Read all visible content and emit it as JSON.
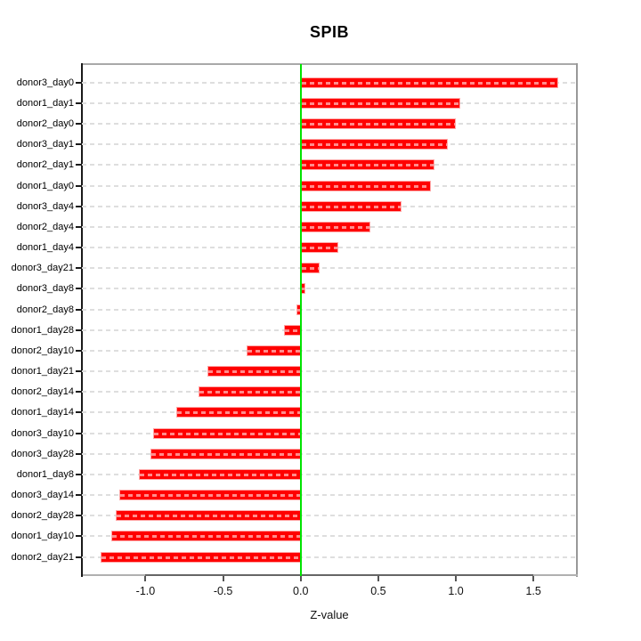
{
  "chart_data": {
    "type": "bar",
    "orientation": "horizontal",
    "title": "SPIB",
    "xlabel": "Z-value",
    "categories": [
      "donor3_day0",
      "donor1_day1",
      "donor2_day0",
      "donor3_day1",
      "donor2_day1",
      "donor1_day0",
      "donor3_day4",
      "donor2_day4",
      "donor1_day4",
      "donor3_day21",
      "donor3_day8",
      "donor2_day8",
      "donor1_day28",
      "donor2_day10",
      "donor1_day21",
      "donor2_day14",
      "donor1_day14",
      "donor3_day10",
      "donor3_day28",
      "donor1_day8",
      "donor3_day14",
      "donor2_day28",
      "donor1_day10",
      "donor2_day21"
    ],
    "values": [
      1.66,
      1.03,
      1.0,
      0.95,
      0.86,
      0.84,
      0.65,
      0.45,
      0.24,
      0.12,
      0.03,
      -0.03,
      -0.11,
      -0.35,
      -0.6,
      -0.66,
      -0.8,
      -0.95,
      -0.97,
      -1.04,
      -1.17,
      -1.19,
      -1.22,
      -1.29
    ],
    "xlim": [
      -1.41,
      1.78
    ],
    "x_tick_values": [
      -1.0,
      -0.5,
      0.0,
      0.5,
      1.0,
      1.5
    ],
    "x_tick_labels": [
      "-1.0",
      "-0.5",
      "0.0",
      "0.5",
      "1.0",
      "1.5"
    ],
    "zero_line": 0.0,
    "grid": true,
    "legend_position": "none",
    "colors": {
      "bar": "#ff0000",
      "bar_edge": "#ffa6a6",
      "zero_line": "#00e400",
      "grid": "#dedede",
      "frame": "#a9a9a9",
      "axis_left": "#1a1a1a",
      "axis_bottom": "#666666"
    }
  }
}
